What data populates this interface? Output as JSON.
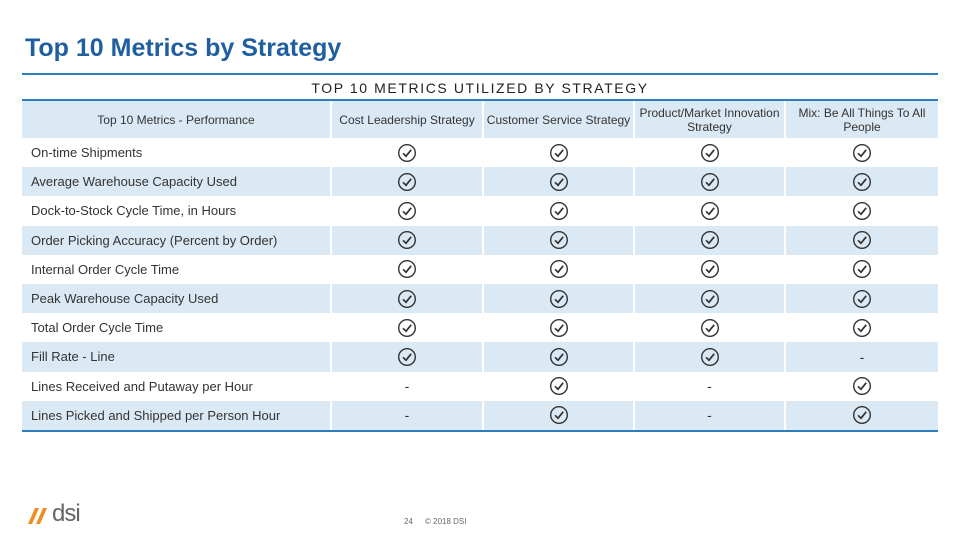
{
  "header": {
    "title": "Top 10 Metrics by Strategy"
  },
  "table": {
    "caption": "TOP 10 METRICS UTILIZED BY STRATEGY",
    "columns": [
      "Top 10 Metrics - Performance",
      "Cost Leadership Strategy",
      "Customer Service Strategy",
      "Product/Market Innovation Strategy",
      "Mix: Be All Things To All People"
    ],
    "rows": [
      [
        "On-time Shipments",
        true,
        true,
        true,
        true
      ],
      [
        "Average Warehouse Capacity Used",
        true,
        true,
        true,
        true
      ],
      [
        "Dock-to-Stock Cycle Time, in Hours",
        true,
        true,
        true,
        true
      ],
      [
        "Order Picking Accuracy (Percent by Order)",
        true,
        true,
        true,
        true
      ],
      [
        "Internal Order Cycle Time",
        true,
        true,
        true,
        true
      ],
      [
        "Peak Warehouse Capacity Used",
        true,
        true,
        true,
        true
      ],
      [
        "Total Order Cycle Time",
        true,
        true,
        true,
        true
      ],
      [
        "Fill Rate - Line",
        true,
        true,
        true,
        "-"
      ],
      [
        "Lines Received and Putaway per Hour",
        "-",
        true,
        "-",
        true
      ],
      [
        "Lines Picked and Shipped per Person Hour",
        "-",
        true,
        "-",
        true
      ]
    ]
  },
  "footer": {
    "page": "24",
    "copyright": "© 2018 DSI",
    "logo": "dsi"
  }
}
